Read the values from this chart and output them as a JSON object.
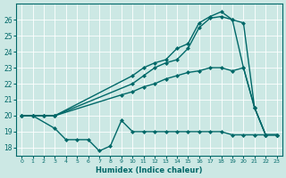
{
  "xlabel": "Humidex (Indice chaleur)",
  "background_color": "#cce8e4",
  "grid_color": "#ffffff",
  "line_color": "#006868",
  "xlim": [
    -0.5,
    23.5
  ],
  "ylim": [
    17.5,
    27.0
  ],
  "x_ticks": [
    0,
    1,
    2,
    3,
    4,
    5,
    6,
    7,
    8,
    9,
    10,
    11,
    12,
    13,
    14,
    15,
    16,
    17,
    18,
    19,
    20,
    21,
    22,
    23
  ],
  "yticks": [
    18,
    19,
    20,
    21,
    22,
    23,
    24,
    25,
    26
  ],
  "series": [
    {
      "x": [
        0,
        1,
        3,
        4,
        5,
        6,
        7,
        8,
        9,
        10,
        11,
        12,
        13,
        14,
        15,
        16,
        17,
        18,
        19,
        20,
        21,
        22,
        23
      ],
      "y": [
        20,
        20,
        19.2,
        18.5,
        18.5,
        18.5,
        17.8,
        18.1,
        19.7,
        19.0,
        19.0,
        19.0,
        19.0,
        19.0,
        19.0,
        19.0,
        19.0,
        19.0,
        18.8,
        18.8,
        18.8,
        18.8,
        18.8
      ],
      "marker": "D",
      "markersize": 2.0,
      "linewidth": 1.0
    },
    {
      "x": [
        0,
        1,
        2,
        3,
        9,
        10,
        11,
        12,
        13,
        14,
        15,
        16,
        17,
        18,
        19,
        20,
        21,
        22,
        23
      ],
      "y": [
        20,
        20,
        20,
        20,
        21.3,
        21.5,
        21.8,
        22.0,
        22.3,
        22.5,
        22.7,
        22.8,
        23.0,
        23.0,
        22.8,
        23.0,
        20.5,
        18.8,
        18.8
      ],
      "marker": "D",
      "markersize": 2.0,
      "linewidth": 1.0
    },
    {
      "x": [
        0,
        1,
        2,
        3,
        10,
        11,
        12,
        13,
        14,
        15,
        16,
        17,
        18,
        19,
        20,
        21,
        22,
        23
      ],
      "y": [
        20,
        20,
        20,
        20,
        22.0,
        22.5,
        23.0,
        23.3,
        23.5,
        24.2,
        25.5,
        26.1,
        26.2,
        26.0,
        25.8,
        20.5,
        18.8,
        18.8
      ],
      "marker": "D",
      "markersize": 2.0,
      "linewidth": 1.0
    },
    {
      "x": [
        0,
        1,
        2,
        3,
        10,
        11,
        12,
        13,
        14,
        15,
        16,
        17,
        18,
        19,
        20,
        21,
        22,
        23
      ],
      "y": [
        20,
        20,
        20,
        20,
        22.5,
        23.0,
        23.3,
        23.5,
        24.2,
        24.5,
        25.8,
        26.2,
        26.5,
        26.0,
        23.0,
        20.5,
        18.8,
        18.8
      ],
      "marker": "D",
      "markersize": 2.0,
      "linewidth": 1.0
    }
  ]
}
